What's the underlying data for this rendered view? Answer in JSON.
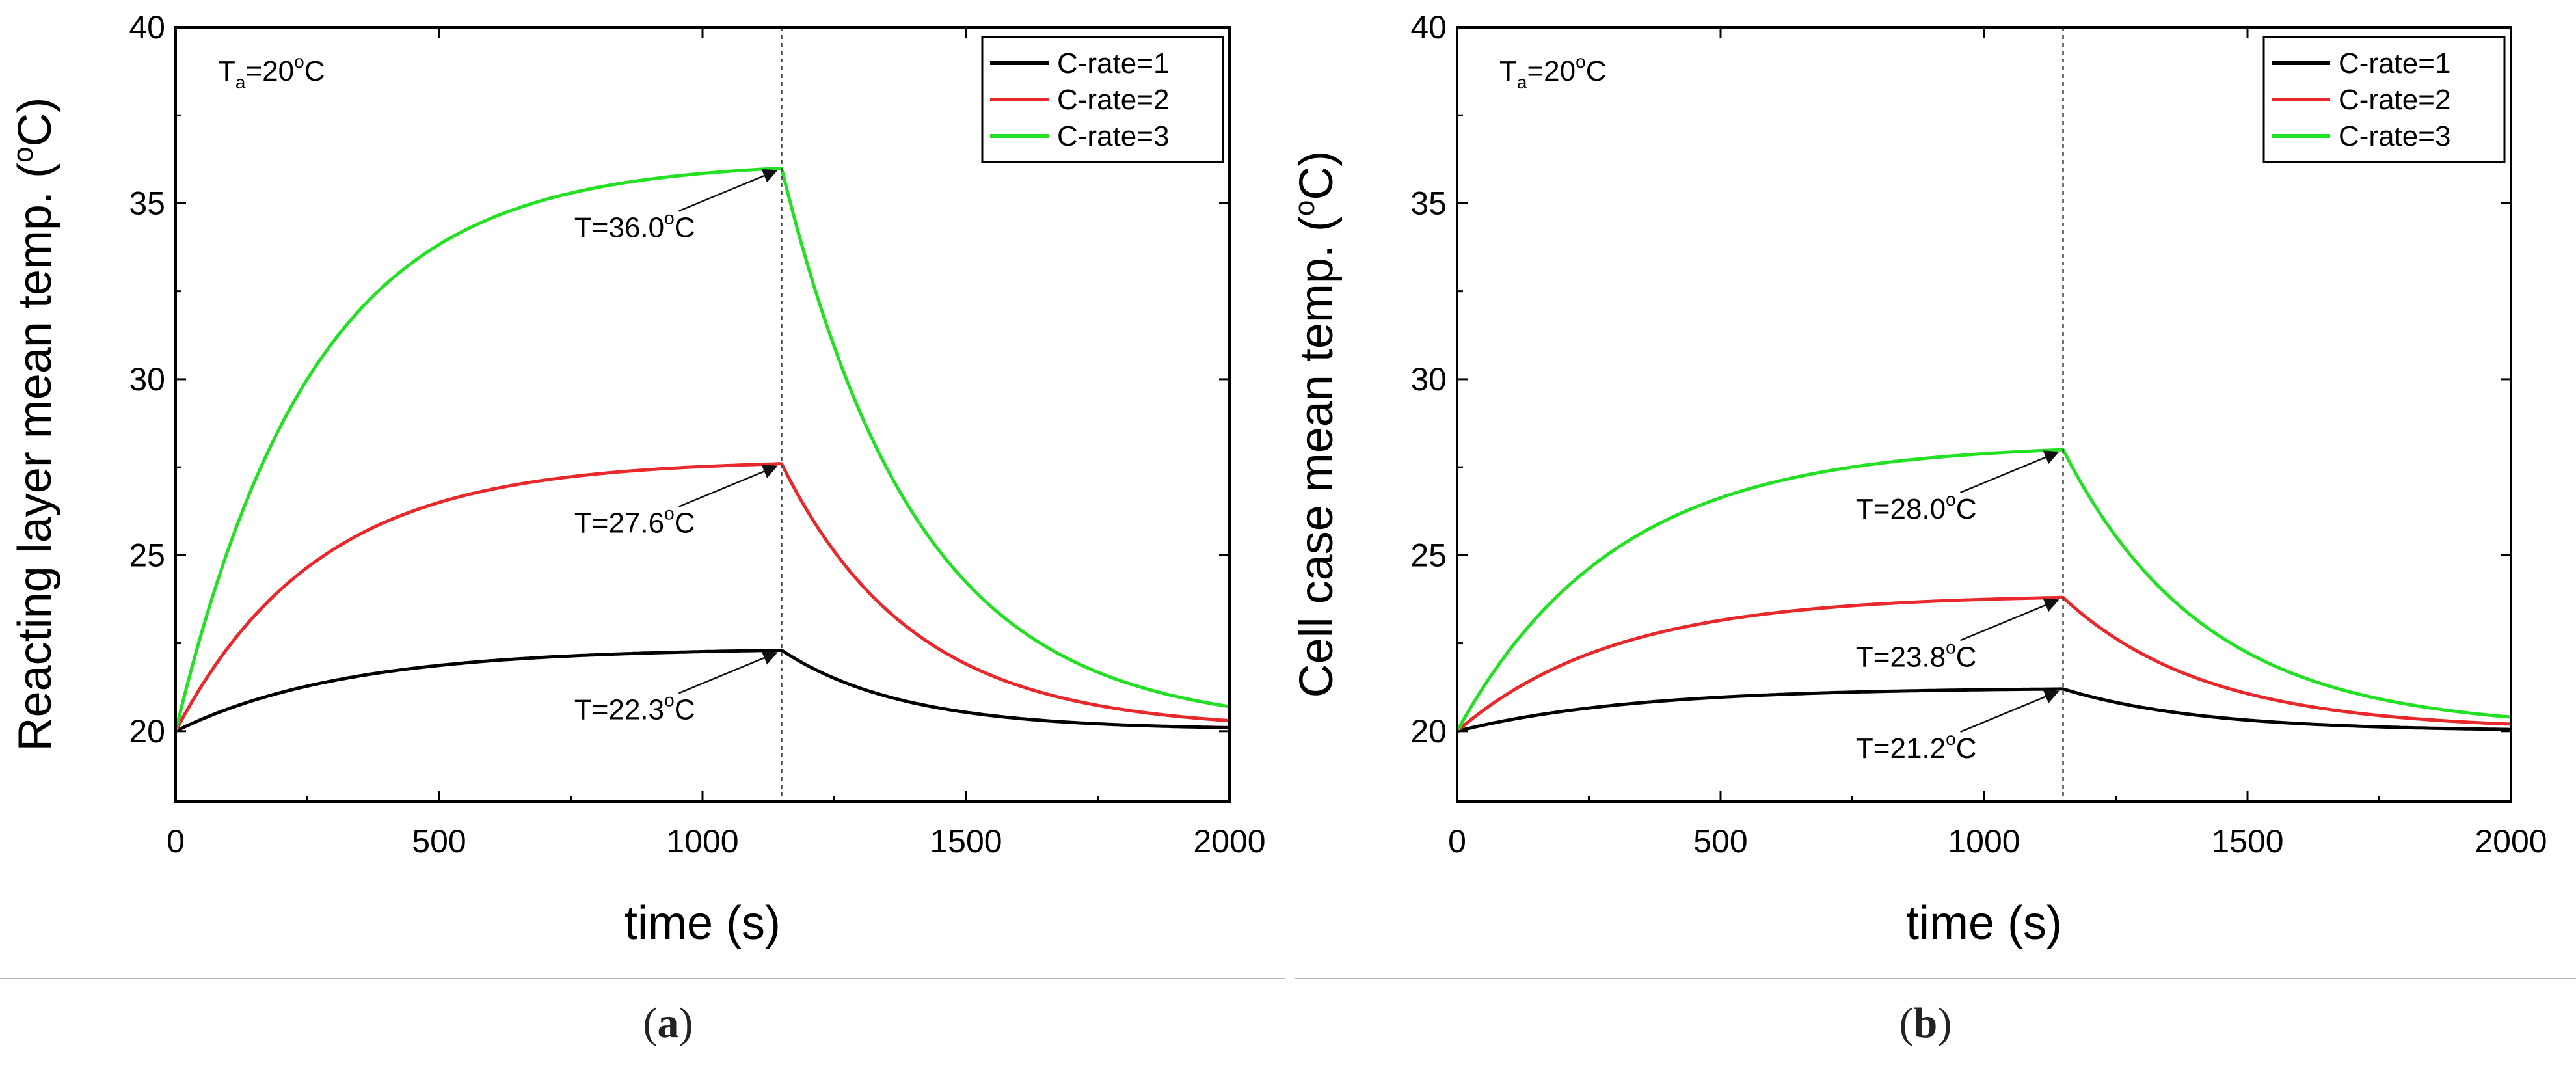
{
  "chart_data": [
    {
      "panel": "a",
      "type": "line",
      "caption_letter": "a",
      "ylabel": "Reacting layer mean temp. (°C)",
      "ylabel_parts": {
        "pre": "Reacting layer mean temp. (",
        "sup": "o",
        "post": "C)"
      },
      "xlabel": "time (s)",
      "xlim": [
        0,
        2000
      ],
      "ylim": [
        18,
        40
      ],
      "xticks": [
        0,
        500,
        1000,
        1500,
        2000
      ],
      "yticks": [
        20,
        25,
        30,
        35,
        40
      ],
      "ambient_label": {
        "t": "T",
        "sub": "a",
        "eq": "=20",
        "sup": "o",
        "unit": "C"
      },
      "vline_x": 1150,
      "legend": [
        "C-rate=1",
        "C-rate=2",
        "C-rate=3"
      ],
      "series": [
        {
          "name": "C-rate=1",
          "color": "#000000",
          "start": 20.0,
          "peak": 22.3,
          "end": 20.1,
          "tau_heat": 320,
          "tau_cool": 230
        },
        {
          "name": "C-rate=2",
          "color": "#e8282b",
          "start": 20.0,
          "peak": 27.6,
          "end": 20.3,
          "tau_heat": 270,
          "tau_cool": 250
        },
        {
          "name": "C-rate=3",
          "color": "#22e022",
          "start": 20.0,
          "peak": 36.0,
          "end": 20.7,
          "tau_heat": 260,
          "tau_cool": 260
        }
      ],
      "annotations": [
        {
          "text_pre": "T=36.0",
          "sup": "o",
          "unit": "C",
          "target": [
            1150,
            36.0
          ]
        },
        {
          "text_pre": "T=27.6",
          "sup": "o",
          "unit": "C",
          "target": [
            1150,
            27.6
          ]
        },
        {
          "text_pre": "T=22.3",
          "sup": "o",
          "unit": "C",
          "target": [
            1150,
            22.3
          ]
        }
      ]
    },
    {
      "panel": "b",
      "type": "line",
      "caption_letter": "b",
      "ylabel": "Cell case mean temp. (°C)",
      "ylabel_parts": {
        "pre": "Cell case mean temp. (",
        "sup": "o",
        "post": "C)"
      },
      "xlabel": "time (s)",
      "xlim": [
        0,
        2000
      ],
      "ylim": [
        18,
        40
      ],
      "xticks": [
        0,
        500,
        1000,
        1500,
        2000
      ],
      "yticks": [
        20,
        25,
        30,
        35,
        40
      ],
      "ambient_label": {
        "t": "T",
        "sub": "a",
        "eq": "=20",
        "sup": "o",
        "unit": "C"
      },
      "vline_x": 1150,
      "legend": [
        "C-rate=1",
        "C-rate=2",
        "C-rate=3"
      ],
      "series": [
        {
          "name": "C-rate=1",
          "color": "#000000",
          "start": 20.0,
          "peak": 21.2,
          "end": 20.05,
          "tau_heat": 330,
          "tau_cool": 260
        },
        {
          "name": "C-rate=2",
          "color": "#e8282b",
          "start": 20.0,
          "peak": 23.8,
          "end": 20.2,
          "tau_heat": 300,
          "tau_cool": 270
        },
        {
          "name": "C-rate=3",
          "color": "#22e022",
          "start": 20.0,
          "peak": 28.0,
          "end": 20.4,
          "tau_heat": 300,
          "tau_cool": 270
        }
      ],
      "annotations": [
        {
          "text_pre": "T=28.0",
          "sup": "o",
          "unit": "C",
          "target": [
            1150,
            28.0
          ]
        },
        {
          "text_pre": "T=23.8",
          "sup": "o",
          "unit": "C",
          "target": [
            1150,
            23.8
          ]
        },
        {
          "text_pre": "T=21.2",
          "sup": "o",
          "unit": "C",
          "target": [
            1150,
            21.2
          ]
        }
      ]
    }
  ]
}
